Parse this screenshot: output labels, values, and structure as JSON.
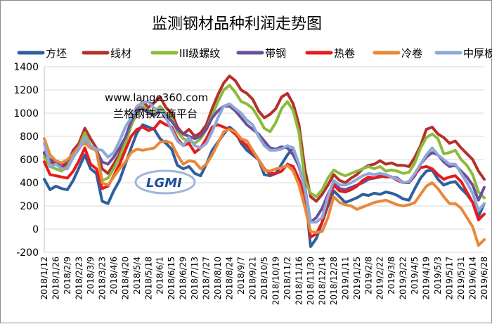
{
  "chart_data": {
    "type": "line",
    "title": "监测钢材品种利润走势图",
    "ylim": [
      -200,
      1400
    ],
    "yticks": [
      -200,
      0,
      200,
      400,
      600,
      800,
      1000,
      1200,
      1400
    ],
    "grid": true,
    "legend_position": "top",
    "x": [
      "2018/1/12",
      "2018/1/19",
      "2018/1/26",
      "2018/2/2",
      "2018/2/9",
      "2018/2/16",
      "2018/2/23",
      "2018/3/2",
      "2018/3/9",
      "2018/3/16",
      "2018/3/23",
      "2018/3/30",
      "2018/4/6",
      "2018/4/13",
      "2018/4/20",
      "2018/4/27",
      "2018/5/4",
      "2018/5/11",
      "2018/5/18",
      "2018/5/25",
      "2018/6/1",
      "2018/6/8",
      "2018/6/15",
      "2018/6/22",
      "2018/6/29",
      "2018/7/6",
      "2018/7/13",
      "2018/7/20",
      "2018/7/27",
      "2018/8/3",
      "2018/8/10",
      "2018/8/17",
      "2018/8/24",
      "2018/8/31",
      "2018/9/7",
      "2018/9/14",
      "2018/9/21",
      "2018/9/28",
      "2018/10/5",
      "2018/10/12",
      "2018/10/19",
      "2018/10/26",
      "2018/11/2",
      "2018/11/9",
      "2018/11/16",
      "2018/11/23",
      "2018/11/30",
      "2018/12/7",
      "2018/12/14",
      "2018/12/21",
      "2018/12/28",
      "2019/1/4",
      "2019/1/11",
      "2019/1/18",
      "2019/1/25",
      "2019/2/1",
      "2019/2/8",
      "2019/2/15",
      "2019/2/22",
      "2019/3/1",
      "2019/3/8",
      "2019/3/15",
      "2019/3/22",
      "2019/3/29",
      "2019/4/5",
      "2019/4/12",
      "2019/4/19",
      "2019/4/26",
      "2019/5/3",
      "2019/5/10",
      "2019/5/17",
      "2019/5/24",
      "2019/5/31",
      "2019/6/7",
      "2019/6/14",
      "2019/6/21",
      "2019/6/28"
    ],
    "x_tick_labels": [
      "2018/1/12",
      "2018/1/26",
      "2018/2/9",
      "2018/2/23",
      "2018/3/9",
      "2018/3/23",
      "2018/4/6",
      "2018/4/20",
      "2018/5/4",
      "2018/5/18",
      "2018/6/1",
      "2018/6/15",
      "2018/6/29",
      "2018/7/13",
      "2018/7/27",
      "2018/8/10",
      "2018/8/24",
      "2018/9/7",
      "2018/9/21",
      "2018/10/5",
      "2018/10/19",
      "2018/11/2",
      "2018/11/16",
      "2018/11/30",
      "2018/12/14",
      "2018/12/28",
      "2019/1/11",
      "2019/1/25",
      "2019/2/8",
      "2019/2/22",
      "2019/3/8",
      "2019/3/22",
      "2019/4/5",
      "2019/4/19",
      "2019/5/3",
      "2019/5/17",
      "2019/5/31",
      "2019/6/14",
      "2019/6/28"
    ],
    "series": [
      {
        "name": "方坯",
        "color": "#2e5f9e",
        "values": [
          430,
          340,
          370,
          350,
          340,
          420,
          530,
          640,
          520,
          480,
          240,
          220,
          330,
          420,
          560,
          700,
          830,
          900,
          880,
          860,
          780,
          740,
          690,
          550,
          520,
          540,
          480,
          460,
          560,
          680,
          750,
          820,
          880,
          840,
          740,
          680,
          640,
          600,
          470,
          460,
          480,
          560,
          640,
          700,
          540,
          350,
          -150,
          -80,
          60,
          200,
          330,
          280,
          230,
          250,
          270,
          300,
          290,
          310,
          300,
          320,
          310,
          290,
          260,
          250,
          350,
          440,
          500,
          510,
          430,
          380,
          400,
          410,
          350,
          300,
          230,
          110,
          220
        ]
      },
      {
        "name": "线材",
        "color": "#b5302a",
        "values": [
          660,
          580,
          560,
          530,
          570,
          680,
          740,
          870,
          780,
          700,
          520,
          480,
          560,
          650,
          760,
          920,
          1040,
          1100,
          1050,
          1090,
          1140,
          1050,
          1000,
          880,
          820,
          860,
          800,
          830,
          900,
          1040,
          1160,
          1260,
          1320,
          1280,
          1200,
          1170,
          1120,
          1020,
          960,
          990,
          1040,
          1140,
          1170,
          1080,
          900,
          520,
          280,
          240,
          300,
          380,
          470,
          420,
          400,
          440,
          470,
          520,
          550,
          560,
          590,
          560,
          570,
          550,
          550,
          540,
          620,
          720,
          860,
          880,
          820,
          790,
          740,
          760,
          700,
          650,
          600,
          500,
          430
        ]
      },
      {
        "name": "III级螺纹",
        "color": "#8cbb3c",
        "values": [
          620,
          540,
          520,
          500,
          540,
          640,
          710,
          830,
          720,
          670,
          420,
          440,
          520,
          620,
          740,
          890,
          1000,
          1060,
          1020,
          1000,
          1060,
          1000,
          960,
          840,
          780,
          760,
          740,
          780,
          860,
          980,
          1100,
          1200,
          1240,
          1180,
          1100,
          1080,
          1040,
          960,
          870,
          840,
          920,
          1040,
          1100,
          1020,
          830,
          420,
          310,
          280,
          340,
          440,
          510,
          480,
          460,
          480,
          500,
          520,
          540,
          520,
          540,
          500,
          510,
          500,
          480,
          490,
          570,
          700,
          790,
          820,
          780,
          650,
          660,
          680,
          600,
          550,
          470,
          320,
          270
        ]
      },
      {
        "name": "带钢",
        "color": "#6b4f9c",
        "values": [
          650,
          600,
          580,
          560,
          590,
          660,
          700,
          780,
          720,
          680,
          580,
          560,
          620,
          700,
          790,
          930,
          1020,
          1040,
          1000,
          980,
          1020,
          980,
          930,
          860,
          820,
          800,
          780,
          800,
          860,
          960,
          1020,
          1060,
          1060,
          1020,
          960,
          900,
          860,
          820,
          760,
          700,
          690,
          710,
          700,
          640,
          540,
          360,
          60,
          100,
          180,
          300,
          400,
          350,
          340,
          360,
          380,
          400,
          430,
          440,
          450,
          460,
          450,
          440,
          400,
          400,
          460,
          560,
          620,
          660,
          640,
          580,
          540,
          550,
          500,
          450,
          380,
          250,
          360
        ]
      },
      {
        "name": "热卷",
        "color": "#e81b1b",
        "values": [
          580,
          470,
          460,
          450,
          440,
          500,
          590,
          700,
          560,
          520,
          350,
          370,
          460,
          560,
          680,
          800,
          860,
          880,
          850,
          870,
          930,
          900,
          880,
          780,
          720,
          740,
          660,
          700,
          780,
          880,
          900,
          880,
          860,
          820,
          760,
          720,
          660,
          600,
          520,
          480,
          480,
          500,
          560,
          540,
          430,
          290,
          -70,
          -40,
          60,
          240,
          380,
          330,
          320,
          340,
          370,
          420,
          450,
          440,
          460,
          450,
          450,
          420,
          400,
          410,
          470,
          530,
          540,
          520,
          470,
          430,
          450,
          460,
          410,
          320,
          230,
          80,
          130
        ]
      },
      {
        "name": "冷卷",
        "color": "#e8893a",
        "values": [
          780,
          640,
          590,
          570,
          600,
          650,
          710,
          740,
          700,
          680,
          400,
          380,
          450,
          520,
          580,
          660,
          690,
          680,
          690,
          700,
          750,
          760,
          740,
          640,
          560,
          590,
          580,
          520,
          560,
          640,
          740,
          840,
          860,
          840,
          780,
          760,
          680,
          600,
          510,
          500,
          520,
          530,
          550,
          500,
          380,
          190,
          -20,
          -30,
          -20,
          100,
          280,
          230,
          210,
          200,
          170,
          190,
          210,
          230,
          240,
          250,
          230,
          210,
          200,
          210,
          230,
          300,
          370,
          400,
          350,
          280,
          220,
          220,
          180,
          100,
          20,
          -140,
          -90
        ]
      },
      {
        "name": "中厚板",
        "color": "#8ea9d8",
        "values": [
          740,
          540,
          560,
          520,
          520,
          620,
          690,
          790,
          720,
          690,
          680,
          620,
          660,
          760,
          880,
          960,
          1060,
          1090,
          1100,
          1040,
          1030,
          960,
          860,
          760,
          720,
          790,
          720,
          700,
          740,
          840,
          960,
          1060,
          1080,
          1040,
          1000,
          940,
          900,
          800,
          720,
          680,
          680,
          690,
          720,
          700,
          560,
          340,
          60,
          60,
          100,
          280,
          420,
          380,
          380,
          400,
          430,
          460,
          480,
          470,
          480,
          470,
          450,
          430,
          400,
          410,
          480,
          560,
          640,
          700,
          640,
          600,
          560,
          560,
          480,
          400,
          310,
          160,
          220
        ]
      }
    ]
  },
  "watermark": {
    "url": "www.lange360.com",
    "name": "兰格钢铁云商平台",
    "logo_text": "LGMI"
  }
}
